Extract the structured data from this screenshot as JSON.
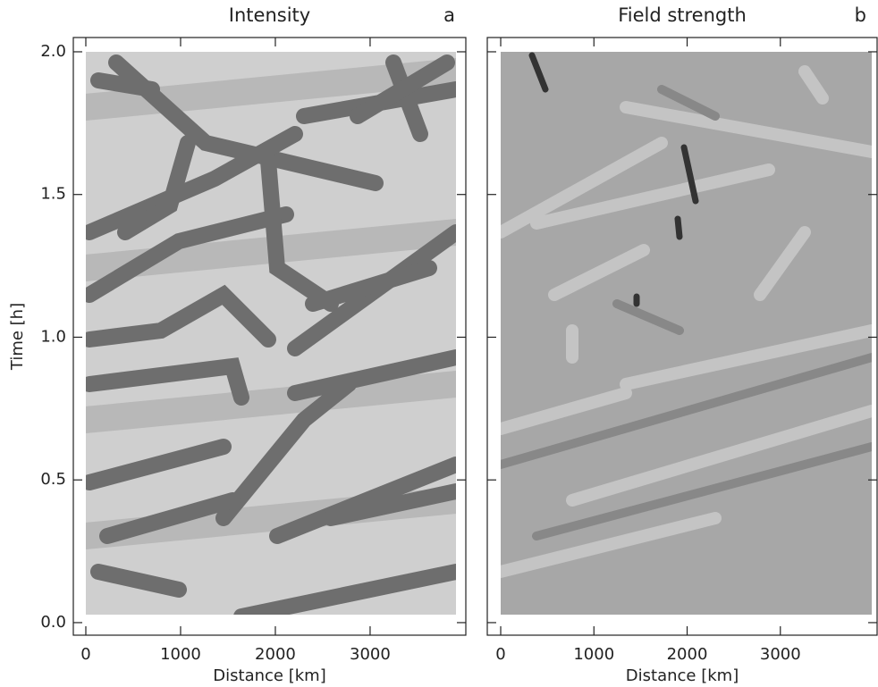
{
  "chart_data": [
    {
      "type": "image",
      "title": "Intensity",
      "annotation": "a",
      "xlabel": "Distance [km]",
      "ylabel": "Time [h]",
      "xlim": [
        -132,
        4010
      ],
      "ylim": [
        -0.044,
        2.05
      ],
      "xticks": [
        0,
        1000,
        2000,
        3000
      ],
      "yticks": [
        {
          "value": 0,
          "label": "0.0"
        },
        {
          "value": 0.5,
          "label": "0.5"
        },
        {
          "value": 1,
          "label": "1.0"
        },
        {
          "value": 1.5,
          "label": "1.5"
        },
        {
          "value": 2,
          "label": "2.0"
        }
      ],
      "show_ytick_labels": true
    },
    {
      "type": "image",
      "title": "Field strength",
      "annotation": "b",
      "xlabel": "Distance [km]",
      "xlim": [
        -144,
        4038
      ],
      "ylim": [
        -0.044,
        2.05
      ],
      "xticks": [
        0,
        1000,
        2000,
        3000
      ],
      "yticks": [
        0,
        0.5,
        1,
        1.5,
        2
      ],
      "show_ytick_labels": false
    }
  ]
}
